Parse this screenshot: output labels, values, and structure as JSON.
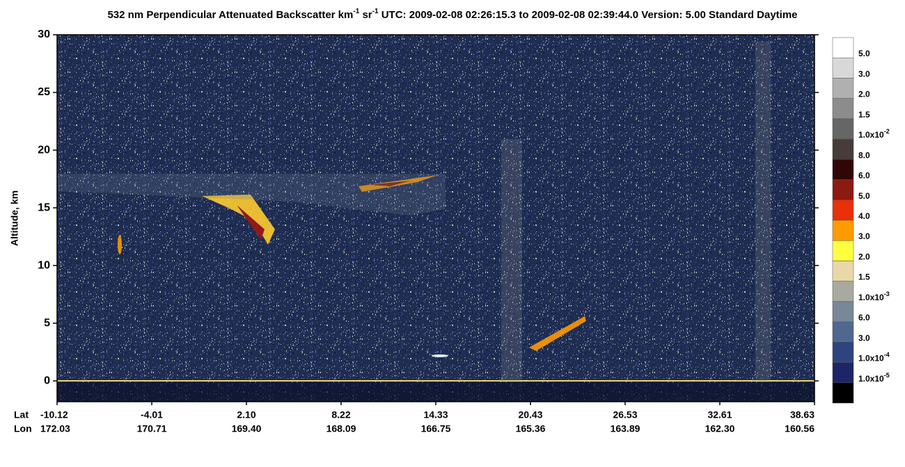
{
  "chart_data": {
    "type": "heatmap",
    "title": [
      {
        "text": "532 nm Perpendicular Attenuated Backscatter km"
      },
      {
        "sup": "-1"
      },
      {
        "text": " sr"
      },
      {
        "sup": "-1"
      },
      {
        "text": "  UTC: 2009-02-08 02:26:15.3 to 2009-02-08 02:39:44.0  Version: 5.00 Standard Daytime"
      }
    ],
    "y_label": "Altitude, km",
    "ylim": [
      -1.8,
      30
    ],
    "yticks": [
      0,
      5,
      10,
      15,
      20,
      25,
      30
    ],
    "lat_title": "Lat",
    "lon_title": "Lon",
    "lat_labels": [
      "-10.12",
      "-4.01",
      "2.10",
      "8.22",
      "14.33",
      "20.43",
      "26.53",
      "32.61",
      "38.63"
    ],
    "lon_labels": [
      "172.03",
      "170.71",
      "169.40",
      "168.09",
      "166.75",
      "165.36",
      "163.89",
      "162.30",
      "160.56"
    ],
    "colorbar": {
      "colors": [
        "#ffffff",
        "#d8d8d8",
        "#b0b0b0",
        "#8c8c8c",
        "#666666",
        "#473c3a",
        "#300606",
        "#8b1a10",
        "#e8300a",
        "#ff9a00",
        "#ffff40",
        "#e8d8a8",
        "#a8aaa0",
        "#788898",
        "#506890",
        "#2e4480",
        "#1e2468",
        "#000000"
      ],
      "labels": [
        {
          "text": "5.0"
        },
        {
          "text": "3.0"
        },
        {
          "text": "2.0"
        },
        {
          "text": "1.5"
        },
        {
          "text": "1.0x10",
          "sup": "-2"
        },
        {
          "text": "8.0"
        },
        {
          "text": "6.0"
        },
        {
          "text": "5.0"
        },
        {
          "text": "4.0"
        },
        {
          "text": "3.0"
        },
        {
          "text": "2.0"
        },
        {
          "text": "1.5"
        },
        {
          "text": "1.0x10",
          "sup": "-3"
        },
        {
          "text": "6.0"
        },
        {
          "text": "3.0"
        },
        {
          "text": "1.0x10",
          "sup": "-4"
        },
        {
          "text": "1.0x10",
          "sup": "-5"
        }
      ]
    }
  }
}
